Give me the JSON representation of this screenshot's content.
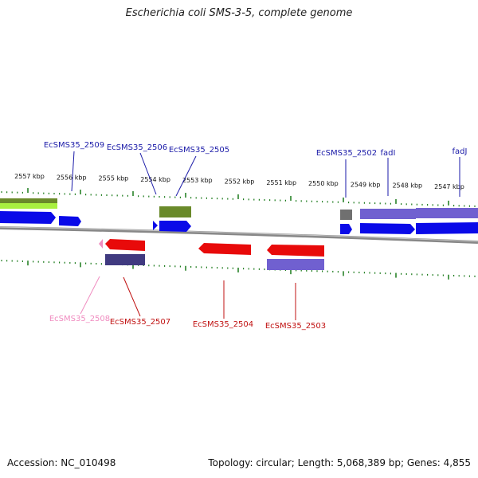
{
  "title": "Escherichia coli SMS-3-5, complete genome",
  "footer": {
    "accession": "Accession: NC_010498",
    "stats": "Topology: circular; Length: 5,068,389 bp; Genes: 4,855"
  },
  "scale_labels": [
    "2557 kbp",
    "2556 kbp",
    "2555 kbp",
    "2554 kbp",
    "2553 kbp",
    "2552 kbp",
    "2551 kbp",
    "2550 kbp",
    "2549 kbp",
    "2548 kbp",
    "2547 kbp"
  ],
  "gene_labels_top": [
    "EcSMS35_2509",
    "EcSMS35_2506",
    "EcSMS35_2505",
    "EcSMS35_2502",
    "fadI",
    "fadJ"
  ],
  "gene_labels_bottom": [
    "EcSMS35_2508",
    "EcSMS35_2507",
    "EcSMS35_2504",
    "EcSMS35_2503"
  ],
  "colors": {
    "forward_gene": "#0a0ae8",
    "reverse_gene": "#e80a0a",
    "top_label": "#1a1aa8",
    "bottom_label": "#c01010",
    "pink_label": "#f08cc0",
    "cog_purple": "#7060d0",
    "cog_green": "#6a8a2a",
    "cog_lime": "#a8f040",
    "cog_navy": "#403a80",
    "cog_gray": "#707070",
    "tick_green": "#1a7a1a",
    "backbone": "#808080"
  }
}
